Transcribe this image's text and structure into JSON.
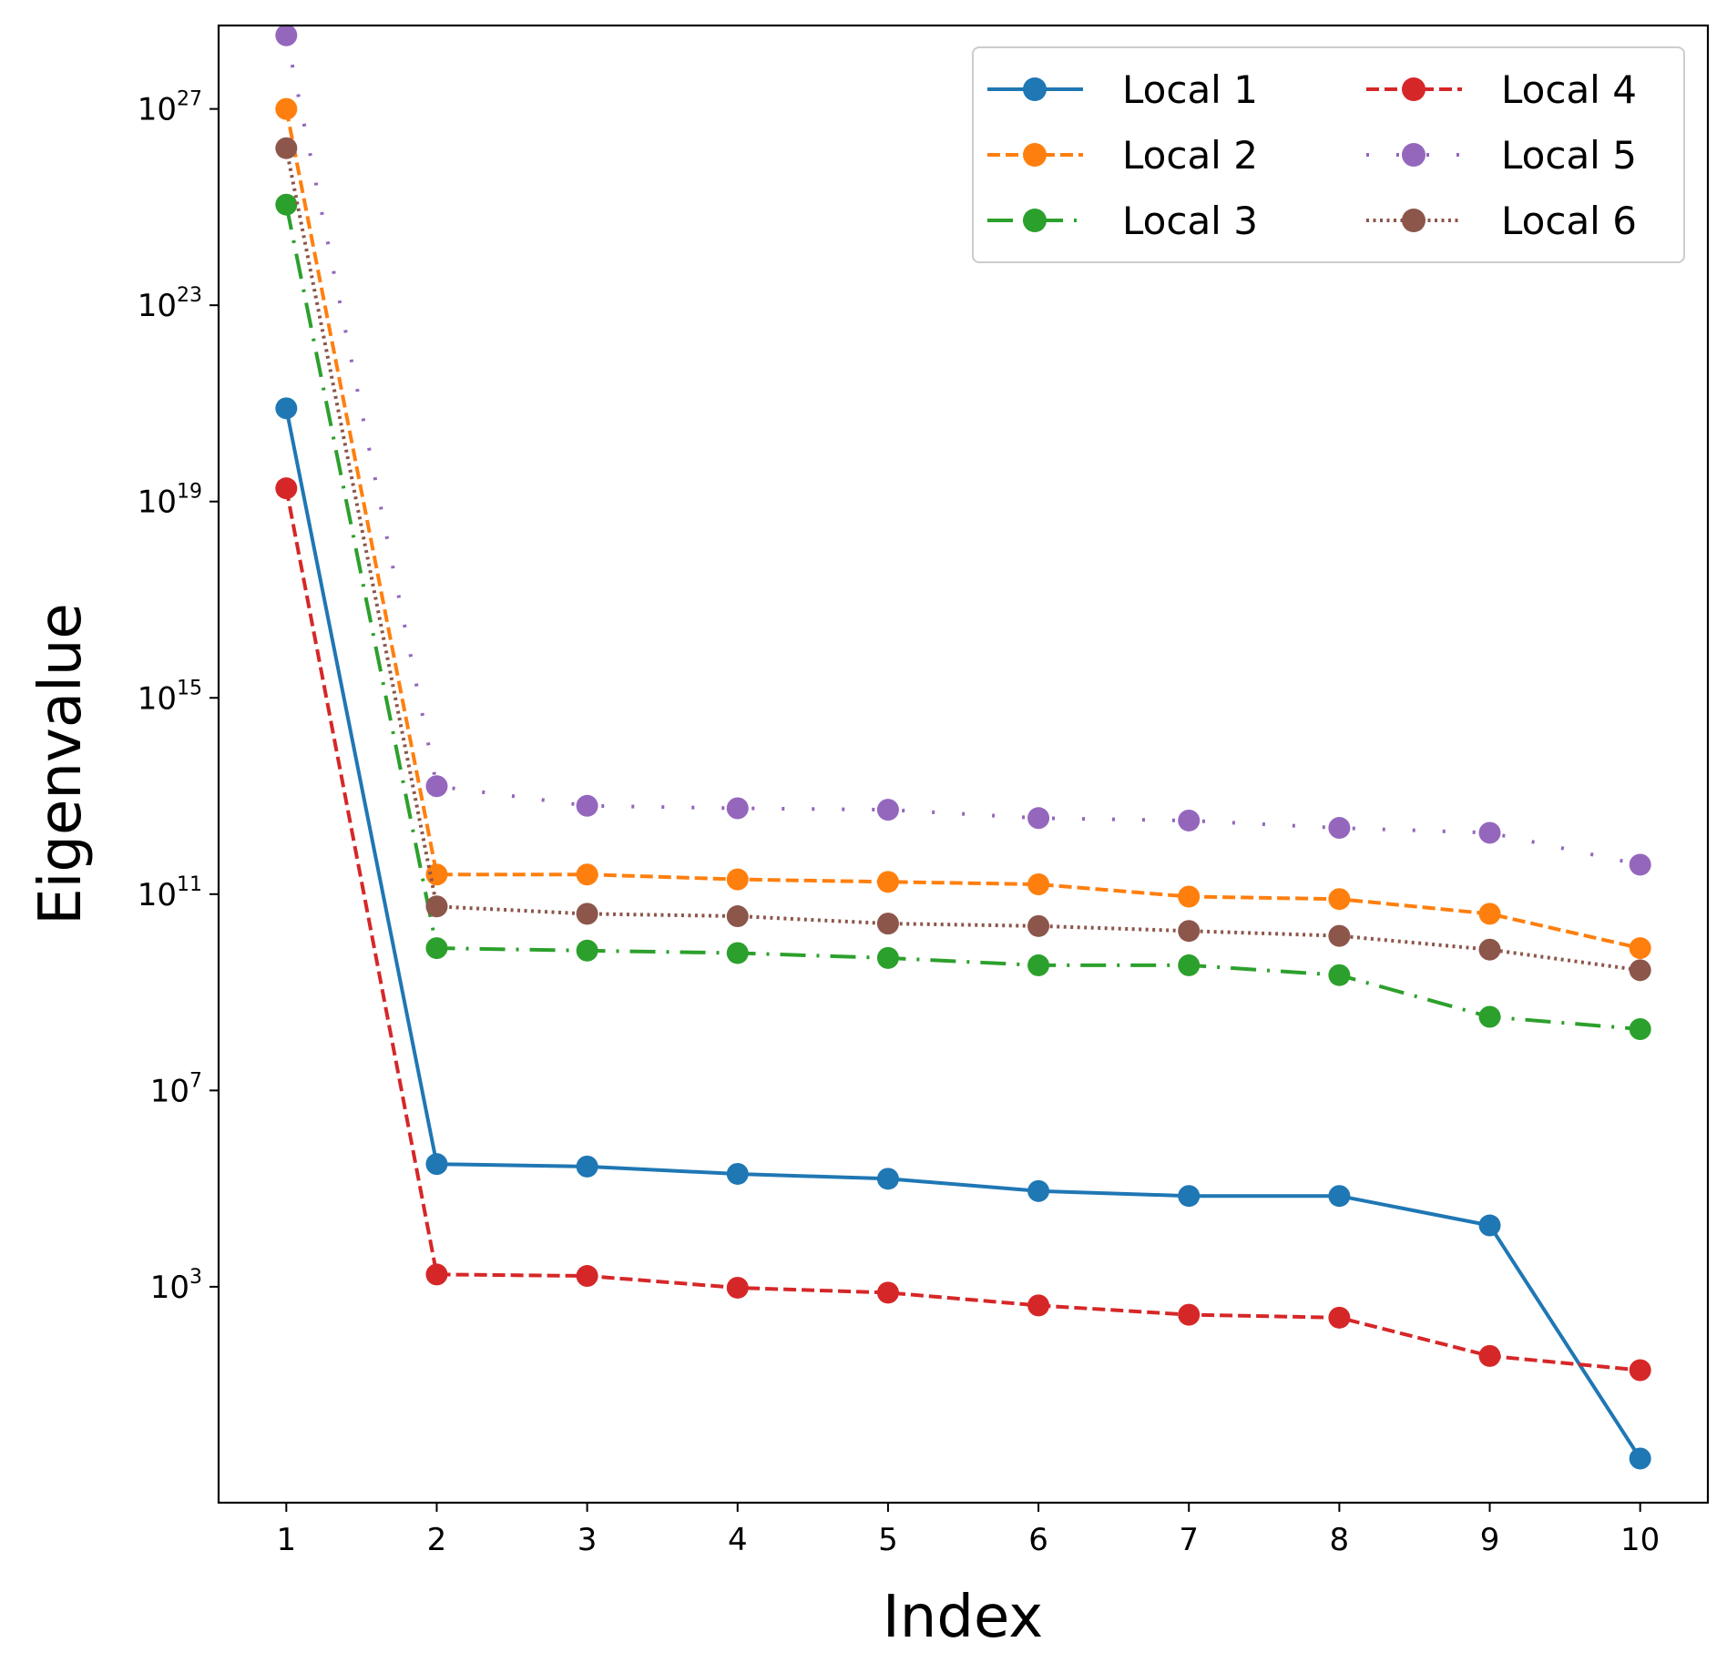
{
  "chart_data": {
    "type": "line",
    "title": "",
    "xlabel": "Index",
    "ylabel": "Eigenvalue",
    "yscale": "log",
    "x": [
      1,
      2,
      3,
      4,
      5,
      6,
      7,
      8,
      9,
      10
    ],
    "xlim": [
      0.55,
      10.45
    ],
    "ylim_log10": [
      -1.4,
      28.7
    ],
    "y_ticks": [
      {
        "base": "10",
        "exp": "3",
        "log10": 3
      },
      {
        "base": "10",
        "exp": "7",
        "log10": 7
      },
      {
        "base": "10",
        "exp": "11",
        "log10": 11
      },
      {
        "base": "10",
        "exp": "15",
        "log10": 15
      },
      {
        "base": "10",
        "exp": "19",
        "log10": 19
      },
      {
        "base": "10",
        "exp": "23",
        "log10": 23
      },
      {
        "base": "10",
        "exp": "27",
        "log10": 27
      }
    ],
    "grid": false,
    "legend_position": "top-right",
    "legend_columns": 2,
    "series": [
      {
        "name": "Local 1",
        "color": "#1f77b4",
        "linestyle": "solid",
        "log10_values": [
          20.9,
          5.5,
          5.45,
          5.3,
          5.2,
          4.95,
          4.85,
          4.85,
          4.25,
          -0.5
        ]
      },
      {
        "name": "Local 2",
        "color": "#ff7f0e",
        "linestyle": "dashed",
        "log10_values": [
          27.0,
          11.4,
          11.4,
          11.3,
          11.25,
          11.2,
          10.95,
          10.9,
          10.6,
          9.9
        ]
      },
      {
        "name": "Local 3",
        "color": "#2ca02c",
        "linestyle": "dashdot",
        "log10_values": [
          25.05,
          9.9,
          9.85,
          9.8,
          9.7,
          9.55,
          9.55,
          9.35,
          8.5,
          8.25
        ]
      },
      {
        "name": "Local 4",
        "color": "#d62728",
        "linestyle": "dashed",
        "log10_values": [
          19.27,
          3.25,
          3.22,
          2.98,
          2.88,
          2.62,
          2.43,
          2.37,
          1.59,
          1.3
        ]
      },
      {
        "name": "Local 5",
        "color": "#9467bd",
        "linestyle": "dotted-sparse",
        "log10_values": [
          28.5,
          13.2,
          12.8,
          12.75,
          12.72,
          12.55,
          12.5,
          12.35,
          12.25,
          11.6
        ]
      },
      {
        "name": "Local 6",
        "color": "#8c564b",
        "linestyle": "dotted",
        "log10_values": [
          26.2,
          10.75,
          10.6,
          10.55,
          10.4,
          10.35,
          10.25,
          10.15,
          9.87,
          9.45
        ]
      }
    ]
  }
}
